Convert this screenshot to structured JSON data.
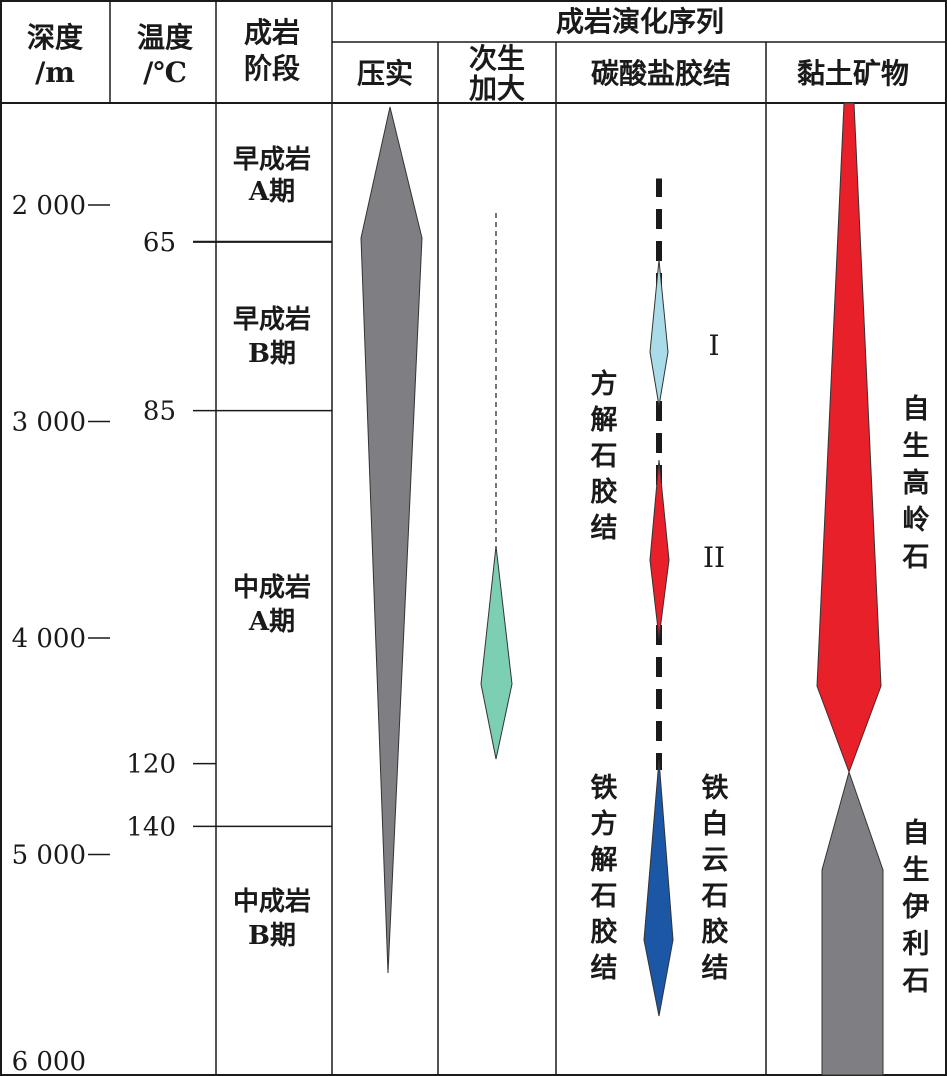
{
  "headers": {
    "depth": [
      "深度",
      "/m"
    ],
    "temperature": [
      "温度",
      "/℃"
    ],
    "stage": [
      "成岩",
      "阶段"
    ],
    "sequence": "成岩演化序列",
    "compaction": "压实",
    "overgrowth": [
      "次生",
      "加大"
    ],
    "carbonate": "碳酸盐胶结",
    "clay": "黏土矿物"
  },
  "depth_ticks": [
    {
      "value": 2000,
      "label": "2 000"
    },
    {
      "value": 3000,
      "label": "3 000"
    },
    {
      "value": 4000,
      "label": "4 000"
    },
    {
      "value": 5000,
      "label": "5 000"
    },
    {
      "value": 6000,
      "label": "6 000"
    }
  ],
  "temperature_marks": [
    {
      "label": "65",
      "depth": 2170,
      "boundary": true
    },
    {
      "label": "85",
      "depth": 2950,
      "boundary": true
    },
    {
      "label": "120",
      "depth": 4580,
      "boundary": false
    },
    {
      "label": "140",
      "depth": 4870,
      "boundary": true
    }
  ],
  "stages": [
    [
      "早成岩",
      "A期"
    ],
    [
      "早成岩",
      "B期"
    ],
    [
      "中成岩",
      "A期"
    ],
    [
      "中成岩",
      "B期"
    ]
  ],
  "labels": {
    "calcite": [
      "方",
      "解",
      "石",
      "胶",
      "结"
    ],
    "roman_1": "I",
    "roman_2": "II",
    "ferrocalcite": [
      "铁",
      "方",
      "解",
      "石",
      "胶",
      "结"
    ],
    "ankerite": [
      "铁",
      "白",
      "云",
      "石",
      "胶",
      "结"
    ],
    "kaolinite": [
      "自",
      "生",
      "高",
      "岭",
      "石"
    ],
    "illite": [
      "自",
      "生",
      "伊",
      "利",
      "石"
    ]
  },
  "colors": {
    "compaction": "#7f7f83",
    "overgrowth": "#7ccfb2",
    "calcite_1": "#a9dbe8",
    "calcite_2": "#e8202a",
    "ferro_carbonate": "#1c57a6",
    "kaolinite": "#e8202a",
    "illite": "#7f7f83"
  }
}
